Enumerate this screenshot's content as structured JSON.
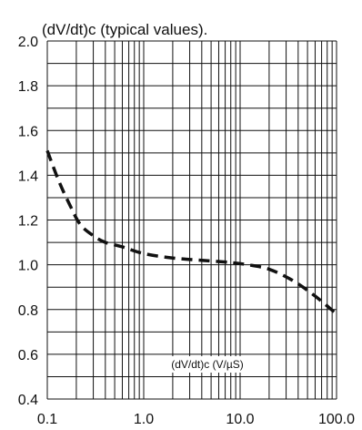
{
  "chart_data": {
    "type": "line",
    "title": "(dV/dt)c (typical values).",
    "xlabel": "(dV/dt)c (V/µS)",
    "ylabel": "",
    "x_scale": "log",
    "xlim": [
      0.1,
      100.0
    ],
    "ylim": [
      0.4,
      2.0
    ],
    "x_ticks": [
      "0.1",
      "1.0",
      "10.0",
      "100.0"
    ],
    "y_ticks": [
      "0.4",
      "0.6",
      "0.8",
      "1.0",
      "1.2",
      "1.4",
      "1.6",
      "1.8",
      "2.0"
    ],
    "grid": true,
    "line_style": "dashed",
    "line_color": "#111111",
    "series": [
      {
        "x": [
          0.1,
          0.13,
          0.17,
          0.22,
          0.3,
          0.4,
          0.6,
          1.0,
          2.0,
          4.0,
          8.0,
          12.0,
          20.0,
          35.0,
          60.0,
          100.0
        ],
        "y": [
          1.51,
          1.38,
          1.27,
          1.18,
          1.13,
          1.1,
          1.08,
          1.05,
          1.03,
          1.02,
          1.01,
          1.0,
          0.98,
          0.93,
          0.86,
          0.78
        ]
      }
    ]
  }
}
